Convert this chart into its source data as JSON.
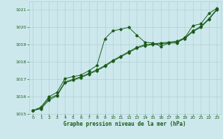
{
  "title": "Graphe pression niveau de la mer (hPa)",
  "background_color": "#cce8ec",
  "grid_color": "#b0d0d4",
  "line_color": "#1a5c1a",
  "xlim": [
    -0.5,
    23.5
  ],
  "ylim": [
    1015,
    1021.5
  ],
  "xticks": [
    0,
    1,
    2,
    3,
    4,
    5,
    6,
    7,
    8,
    9,
    10,
    11,
    12,
    13,
    14,
    15,
    16,
    17,
    18,
    19,
    20,
    21,
    22,
    23
  ],
  "yticks": [
    1015,
    1016,
    1017,
    1018,
    1019,
    1020,
    1021
  ],
  "series1_x": [
    0,
    1,
    2,
    3,
    4,
    5,
    6,
    7,
    8,
    9,
    10,
    11,
    12,
    13,
    14,
    15,
    16,
    17,
    18,
    19,
    20,
    21,
    22,
    23
  ],
  "series1_y": [
    1015.2,
    1015.4,
    1016.0,
    1016.25,
    1017.05,
    1017.15,
    1017.25,
    1017.5,
    1017.8,
    1019.35,
    1019.8,
    1019.9,
    1020.0,
    1019.55,
    1019.15,
    1019.1,
    1018.9,
    1019.1,
    1019.1,
    1019.4,
    1020.1,
    1020.2,
    1020.8,
    1021.1
  ],
  "series2_x": [
    0,
    1,
    2,
    3,
    4,
    5,
    6,
    7,
    8,
    9,
    10,
    11,
    12,
    13,
    14,
    15,
    16,
    17,
    18,
    19,
    20,
    21,
    22,
    23
  ],
  "series2_y": [
    1015.2,
    1015.35,
    1015.9,
    1016.1,
    1016.85,
    1017.0,
    1017.15,
    1017.35,
    1017.55,
    1017.8,
    1018.1,
    1018.35,
    1018.6,
    1018.85,
    1019.0,
    1019.05,
    1019.1,
    1019.15,
    1019.2,
    1019.4,
    1019.8,
    1020.05,
    1020.5,
    1021.05
  ],
  "series3_x": [
    0,
    1,
    2,
    3,
    4,
    5,
    6,
    7,
    8,
    9,
    10,
    11,
    12,
    13,
    14,
    15,
    16,
    17,
    18,
    19,
    20,
    21,
    22,
    23
  ],
  "series3_y": [
    1015.2,
    1015.3,
    1015.8,
    1016.05,
    1016.8,
    1016.95,
    1017.1,
    1017.3,
    1017.5,
    1017.75,
    1018.05,
    1018.3,
    1018.55,
    1018.8,
    1018.95,
    1019.0,
    1019.05,
    1019.1,
    1019.15,
    1019.35,
    1019.75,
    1020.0,
    1020.45,
    1021.0
  ]
}
